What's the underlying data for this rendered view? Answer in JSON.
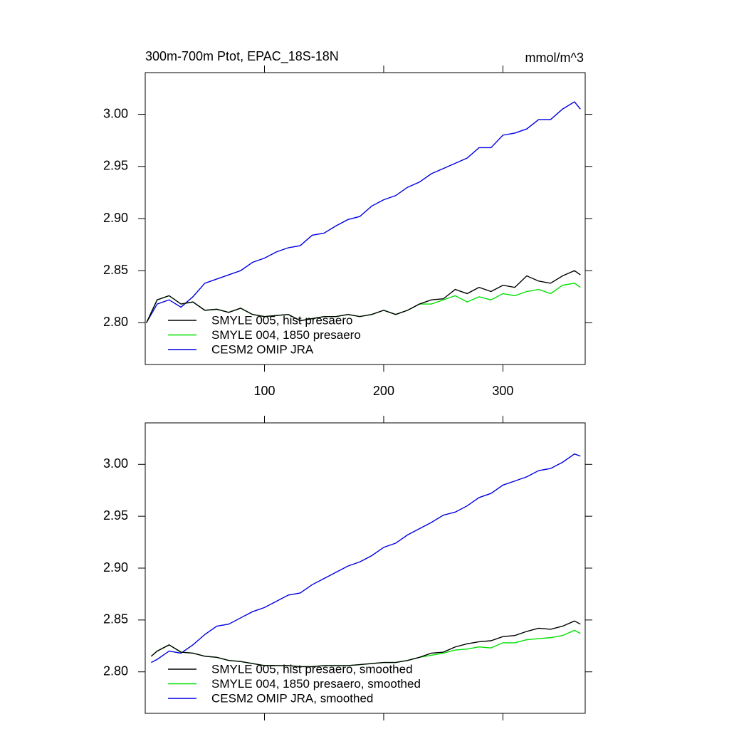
{
  "chart_data": [
    {
      "type": "line",
      "title": "300m-700m Ptot, EPAC_18S-18N",
      "units": "mmol/m^3",
      "x": [
        1,
        10,
        20,
        30,
        40,
        50,
        60,
        70,
        80,
        90,
        100,
        110,
        120,
        130,
        140,
        150,
        160,
        170,
        180,
        190,
        200,
        210,
        220,
        230,
        240,
        250,
        260,
        270,
        280,
        290,
        300,
        310,
        320,
        330,
        340,
        350,
        360,
        365
      ],
      "series": [
        {
          "name": "SMYLE 005, hist presaero",
          "color": "#000000",
          "values": [
            2.8,
            2.822,
            2.826,
            2.818,
            2.82,
            2.812,
            2.813,
            2.81,
            2.814,
            2.808,
            2.806,
            2.807,
            2.808,
            2.802,
            2.804,
            2.806,
            2.806,
            2.808,
            2.806,
            2.808,
            2.812,
            2.808,
            2.812,
            2.818,
            2.822,
            2.823,
            2.832,
            2.828,
            2.834,
            2.83,
            2.836,
            2.834,
            2.845,
            2.84,
            2.838,
            2.845,
            2.85,
            2.846
          ]
        },
        {
          "name": "SMYLE 004, 1850 presaero",
          "color": "#00e000",
          "values": [
            2.8,
            2.822,
            2.826,
            2.818,
            2.82,
            2.812,
            2.813,
            2.81,
            2.814,
            2.808,
            2.806,
            2.807,
            2.808,
            2.802,
            2.804,
            2.806,
            2.806,
            2.808,
            2.806,
            2.808,
            2.812,
            2.808,
            2.812,
            2.818,
            2.818,
            2.822,
            2.826,
            2.82,
            2.825,
            2.822,
            2.828,
            2.826,
            2.83,
            2.832,
            2.828,
            2.836,
            2.838,
            2.834
          ]
        },
        {
          "name": "CESM2 OMIP JRA",
          "color": "#0000e0",
          "values": [
            2.8,
            2.818,
            2.822,
            2.815,
            2.825,
            2.838,
            2.842,
            2.846,
            2.85,
            2.858,
            2.862,
            2.868,
            2.872,
            2.874,
            2.884,
            2.886,
            2.893,
            2.899,
            2.902,
            2.912,
            2.918,
            2.922,
            2.93,
            2.935,
            2.943,
            2.948,
            2.953,
            2.958,
            2.968,
            2.968,
            2.98,
            2.982,
            2.986,
            2.995,
            2.995,
            3.005,
            3.012,
            3.005
          ]
        }
      ],
      "xlim": [
        0,
        369
      ],
      "xticks": [
        100,
        200,
        300
      ],
      "xtick_labels": true,
      "ylim": [
        2.76,
        3.04
      ],
      "yticks": [
        {
          "value": 2.8,
          "label": "2.80"
        },
        {
          "value": 2.85,
          "label": "2.85"
        },
        {
          "value": 2.9,
          "label": "2.90"
        },
        {
          "value": 2.95,
          "label": "2.95"
        },
        {
          "value": 3,
          "label": "3.00"
        }
      ],
      "legend": "lower-left"
    },
    {
      "type": "line",
      "x": [
        5,
        10,
        20,
        30,
        40,
        50,
        60,
        70,
        80,
        90,
        100,
        110,
        120,
        130,
        140,
        150,
        160,
        170,
        180,
        190,
        200,
        210,
        220,
        230,
        240,
        250,
        260,
        270,
        280,
        290,
        300,
        310,
        320,
        330,
        340,
        350,
        360,
        365
      ],
      "series": [
        {
          "name": "SMYLE 005, hist presaero, smoothed",
          "color": "#000000",
          "values": [
            2.815,
            2.82,
            2.826,
            2.819,
            2.818,
            2.815,
            2.814,
            2.811,
            2.81,
            2.808,
            2.806,
            2.806,
            2.806,
            2.805,
            2.805,
            2.806,
            2.806,
            2.806,
            2.807,
            2.808,
            2.809,
            2.809,
            2.811,
            2.814,
            2.818,
            2.819,
            2.824,
            2.827,
            2.829,
            2.83,
            2.834,
            2.835,
            2.839,
            2.842,
            2.841,
            2.844,
            2.849,
            2.846
          ]
        },
        {
          "name": "SMYLE 004, 1850 presaero, smoothed",
          "color": "#00e000",
          "values": [
            2.815,
            2.82,
            2.826,
            2.819,
            2.818,
            2.815,
            2.814,
            2.811,
            2.81,
            2.808,
            2.806,
            2.806,
            2.806,
            2.805,
            2.805,
            2.806,
            2.806,
            2.806,
            2.807,
            2.808,
            2.809,
            2.809,
            2.811,
            2.814,
            2.816,
            2.818,
            2.821,
            2.822,
            2.824,
            2.823,
            2.828,
            2.828,
            2.831,
            2.832,
            2.833,
            2.835,
            2.84,
            2.837
          ]
        },
        {
          "name": "CESM2 OMIP JRA, smoothed",
          "color": "#0000e0",
          "values": [
            2.809,
            2.812,
            2.82,
            2.818,
            2.826,
            2.836,
            2.844,
            2.846,
            2.852,
            2.858,
            2.862,
            2.868,
            2.874,
            2.876,
            2.884,
            2.89,
            2.896,
            2.902,
            2.906,
            2.912,
            2.92,
            2.924,
            2.932,
            2.938,
            2.944,
            2.951,
            2.954,
            2.96,
            2.968,
            2.972,
            2.98,
            2.984,
            2.988,
            2.994,
            2.996,
            3.002,
            3.01,
            3.008
          ]
        }
      ],
      "xlim": [
        0,
        369
      ],
      "xticks": [
        100,
        200,
        300
      ],
      "xtick_labels": false,
      "ylim": [
        2.76,
        3.04
      ],
      "yticks": [
        {
          "value": 2.8,
          "label": "2.80"
        },
        {
          "value": 2.85,
          "label": "2.85"
        },
        {
          "value": 2.9,
          "label": "2.90"
        },
        {
          "value": 2.95,
          "label": "2.95"
        },
        {
          "value": 3,
          "label": "3.00"
        }
      ],
      "legend": "lower-left"
    }
  ]
}
